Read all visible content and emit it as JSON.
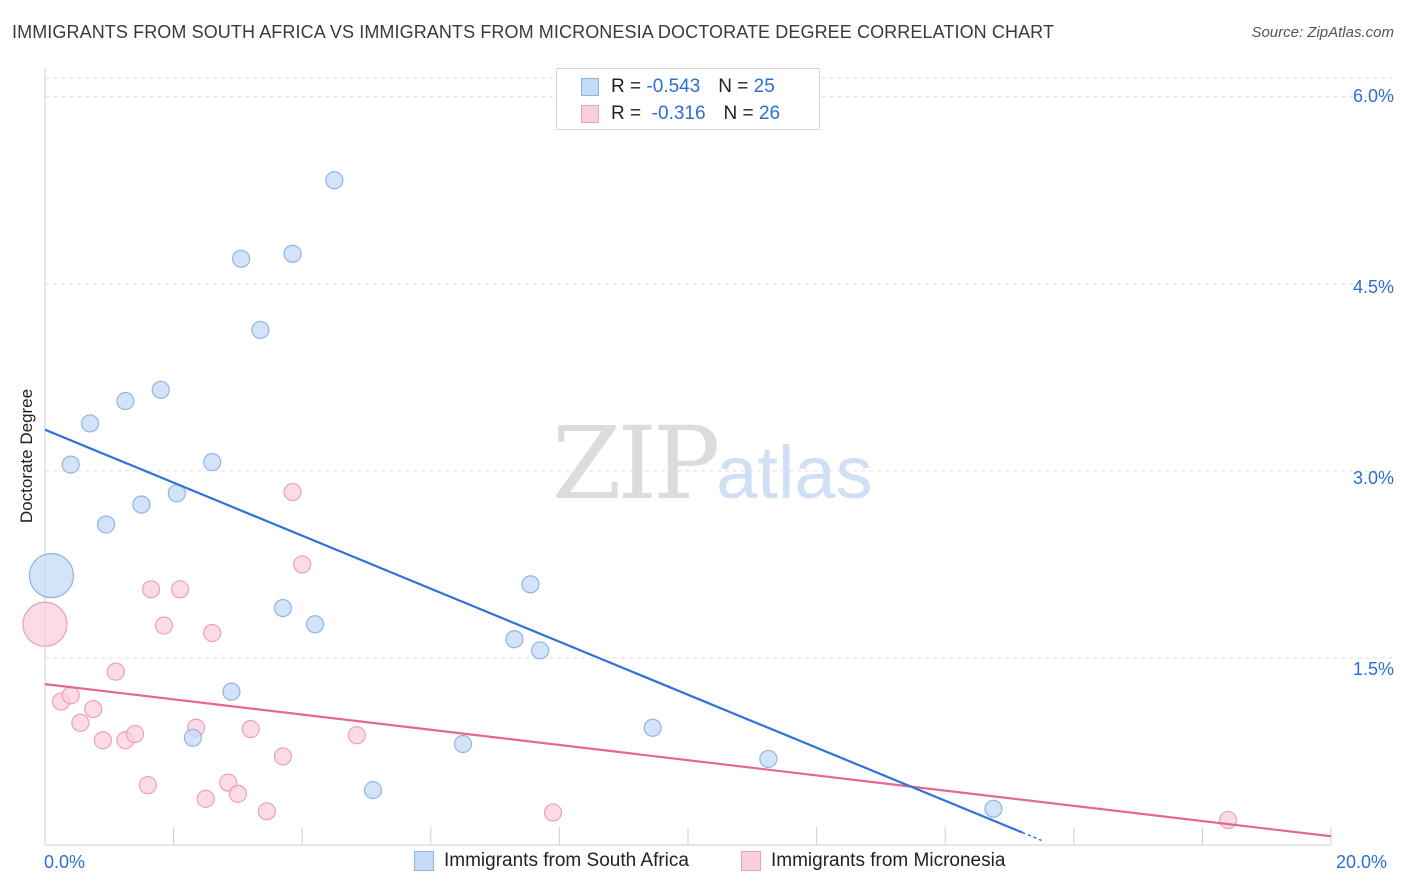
{
  "header": {
    "title": "IMMIGRANTS FROM SOUTH AFRICA VS IMMIGRANTS FROM MICRONESIA DOCTORATE DEGREE CORRELATION CHART",
    "source": "Source: ZipAtlas.com"
  },
  "watermark": {
    "zip": "ZIP",
    "atlas": "atlas"
  },
  "legend": {
    "series1": {
      "r_label": "R =",
      "r_value": "-0.543",
      "n_label": "N =",
      "n_value": "25"
    },
    "series2": {
      "r_label": "R =",
      "r_value": "-0.316",
      "n_label": "N =",
      "n_value": "26"
    }
  },
  "axes": {
    "x_min_label": "0.0%",
    "x_max_label": "20.0%",
    "y_ticks": [
      "6.0%",
      "4.5%",
      "3.0%",
      "1.5%"
    ]
  },
  "colors": {
    "blue_line": "#2f73d6",
    "blue_fill": "#c5dbf5",
    "blue_stroke": "#8fb5e6",
    "pink_line": "#e4678f",
    "pink_fill": "#f9cfdc",
    "pink_stroke": "#eda1b9",
    "grid": "#dddddd",
    "tick_text": "#2d6fd1"
  },
  "chart_data": {
    "type": "scatter",
    "title": "IMMIGRANTS FROM SOUTH AFRICA VS IMMIGRANTS FROM MICRONESIA DOCTORATE DEGREE CORRELATION CHART",
    "xlabel": "",
    "ylabel": "Doctorate Degree",
    "xlim": [
      0,
      20
    ],
    "ylim": [
      0,
      6.15
    ],
    "grid": true,
    "legend_position": "bottom",
    "series": [
      {
        "name": "Immigrants from South Africa",
        "color": "#2f73d6",
        "r": -0.543,
        "n": 25,
        "trend": {
          "x": [
            0,
            15.2
          ],
          "y": [
            3.33,
            0.1
          ]
        },
        "points": [
          {
            "x": 0.1,
            "y": 2.16,
            "big": true
          },
          {
            "x": 0.4,
            "y": 3.05
          },
          {
            "x": 0.7,
            "y": 3.38
          },
          {
            "x": 0.95,
            "y": 2.57
          },
          {
            "x": 1.25,
            "y": 3.56
          },
          {
            "x": 1.5,
            "y": 2.73
          },
          {
            "x": 1.8,
            "y": 3.65
          },
          {
            "x": 2.05,
            "y": 2.82
          },
          {
            "x": 2.3,
            "y": 0.86
          },
          {
            "x": 2.6,
            "y": 3.07
          },
          {
            "x": 2.9,
            "y": 1.23
          },
          {
            "x": 3.05,
            "y": 4.7
          },
          {
            "x": 3.35,
            "y": 4.13
          },
          {
            "x": 3.7,
            "y": 1.9
          },
          {
            "x": 3.85,
            "y": 4.74
          },
          {
            "x": 4.2,
            "y": 1.77
          },
          {
            "x": 4.5,
            "y": 5.33
          },
          {
            "x": 5.1,
            "y": 0.44
          },
          {
            "x": 6.5,
            "y": 0.81
          },
          {
            "x": 7.3,
            "y": 1.65
          },
          {
            "x": 7.55,
            "y": 2.09
          },
          {
            "x": 7.7,
            "y": 1.56
          },
          {
            "x": 9.45,
            "y": 0.94
          },
          {
            "x": 11.25,
            "y": 0.69
          },
          {
            "x": 14.75,
            "y": 0.29
          }
        ]
      },
      {
        "name": "Immigrants from Micronesia",
        "color": "#e4678f",
        "r": -0.316,
        "n": 26,
        "trend": {
          "x": [
            0,
            20
          ],
          "y": [
            1.29,
            0.07
          ]
        },
        "points": [
          {
            "x": 0.0,
            "y": 1.77,
            "big": true
          },
          {
            "x": 0.25,
            "y": 1.15
          },
          {
            "x": 0.4,
            "y": 1.2
          },
          {
            "x": 0.55,
            "y": 0.98
          },
          {
            "x": 0.75,
            "y": 1.09
          },
          {
            "x": 0.9,
            "y": 0.84
          },
          {
            "x": 1.1,
            "y": 1.39
          },
          {
            "x": 1.25,
            "y": 0.84
          },
          {
            "x": 1.4,
            "y": 0.89
          },
          {
            "x": 1.6,
            "y": 0.48
          },
          {
            "x": 1.65,
            "y": 2.05
          },
          {
            "x": 1.85,
            "y": 1.76
          },
          {
            "x": 2.1,
            "y": 2.05
          },
          {
            "x": 2.35,
            "y": 0.94
          },
          {
            "x": 2.5,
            "y": 0.37
          },
          {
            "x": 2.6,
            "y": 1.7
          },
          {
            "x": 2.85,
            "y": 0.5
          },
          {
            "x": 3.0,
            "y": 0.41
          },
          {
            "x": 3.2,
            "y": 0.93
          },
          {
            "x": 3.45,
            "y": 0.27
          },
          {
            "x": 3.7,
            "y": 0.71
          },
          {
            "x": 3.85,
            "y": 2.83
          },
          {
            "x": 4.0,
            "y": 2.25
          },
          {
            "x": 4.85,
            "y": 0.88
          },
          {
            "x": 7.9,
            "y": 0.26
          },
          {
            "x": 18.4,
            "y": 0.2
          }
        ]
      }
    ]
  }
}
